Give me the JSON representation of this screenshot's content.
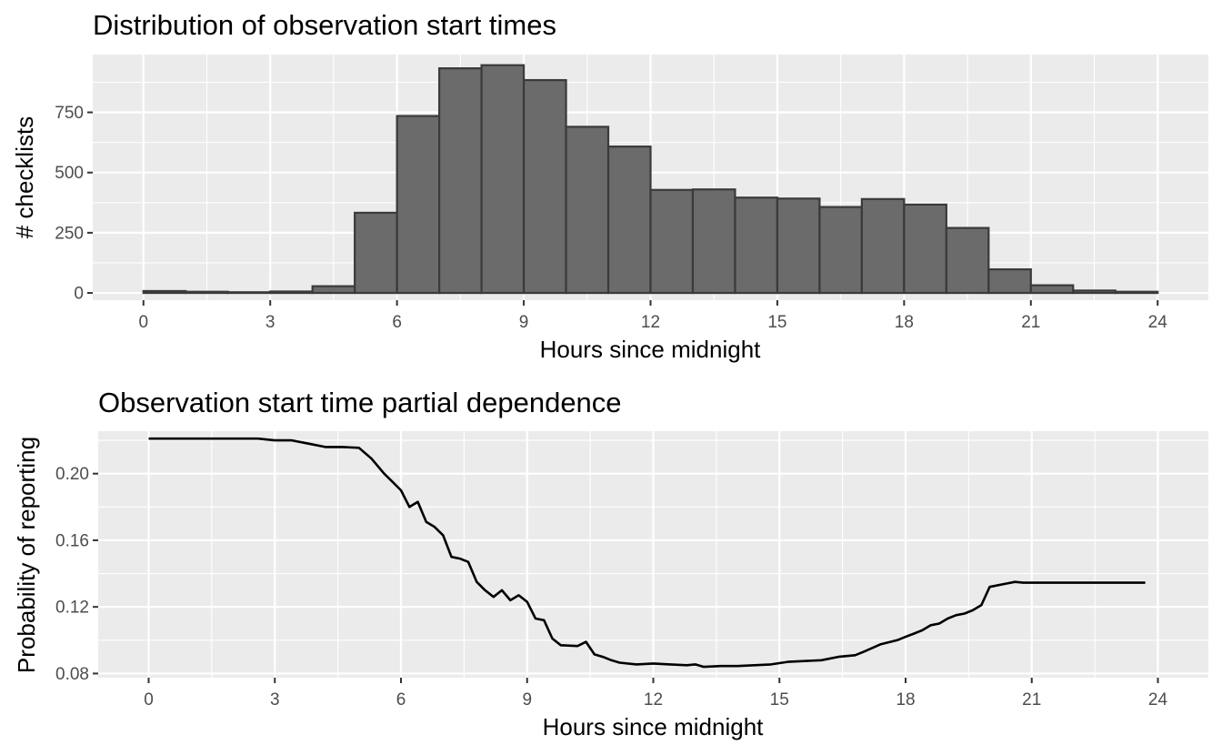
{
  "chart_data": [
    {
      "type": "bar",
      "title": "Distribution of observation start times",
      "xlabel": "Hours since midnight",
      "ylabel": "# checklists",
      "xlim": [
        -1.2,
        25.2
      ],
      "ylim": [
        -30,
        990
      ],
      "xticks": [
        0,
        3,
        6,
        9,
        12,
        15,
        18,
        21,
        24
      ],
      "xtick_labels": [
        "0",
        "3",
        "6",
        "9",
        "12",
        "15",
        "18",
        "21",
        "24"
      ],
      "yticks": [
        0,
        250,
        500,
        750
      ],
      "ytick_labels": [
        "0",
        "250",
        "500",
        "750"
      ],
      "grid": true,
      "bins": [
        {
          "start": 0,
          "end": 1,
          "count": 8
        },
        {
          "start": 1,
          "end": 2,
          "count": 5
        },
        {
          "start": 2,
          "end": 3,
          "count": 3
        },
        {
          "start": 3,
          "end": 4,
          "count": 6
        },
        {
          "start": 4,
          "end": 5,
          "count": 28
        },
        {
          "start": 5,
          "end": 6,
          "count": 333
        },
        {
          "start": 6,
          "end": 7,
          "count": 735
        },
        {
          "start": 7,
          "end": 8,
          "count": 933
        },
        {
          "start": 8,
          "end": 9,
          "count": 946
        },
        {
          "start": 9,
          "end": 10,
          "count": 884
        },
        {
          "start": 10,
          "end": 11,
          "count": 690
        },
        {
          "start": 11,
          "end": 12,
          "count": 608
        },
        {
          "start": 12,
          "end": 13,
          "count": 428
        },
        {
          "start": 13,
          "end": 14,
          "count": 430
        },
        {
          "start": 14,
          "end": 15,
          "count": 396
        },
        {
          "start": 15,
          "end": 16,
          "count": 392
        },
        {
          "start": 16,
          "end": 17,
          "count": 357
        },
        {
          "start": 17,
          "end": 18,
          "count": 390
        },
        {
          "start": 18,
          "end": 19,
          "count": 367
        },
        {
          "start": 19,
          "end": 20,
          "count": 270
        },
        {
          "start": 20,
          "end": 21,
          "count": 98
        },
        {
          "start": 21,
          "end": 22,
          "count": 32
        },
        {
          "start": 22,
          "end": 23,
          "count": 10
        },
        {
          "start": 23,
          "end": 24,
          "count": 5
        }
      ],
      "colors": {
        "bar_fill": "#6b6b6b",
        "bar_stroke": "#3a3a3a",
        "panel": "#ebebeb"
      }
    },
    {
      "type": "line",
      "title": "Observation start time partial dependence",
      "xlabel": "Hours since midnight",
      "ylabel": "Probability of reporting",
      "xlim": [
        -1.2,
        25.2
      ],
      "ylim": [
        0.0775,
        0.2255
      ],
      "xticks": [
        0,
        3,
        6,
        9,
        12,
        15,
        18,
        21,
        24
      ],
      "xtick_labels": [
        "0",
        "3",
        "6",
        "9",
        "12",
        "15",
        "18",
        "21",
        "24"
      ],
      "yticks": [
        0.08,
        0.12,
        0.16,
        0.2
      ],
      "ytick_labels": [
        "0.08",
        "0.12",
        "0.16",
        "0.20"
      ],
      "grid": true,
      "x": [
        0,
        1,
        2,
        2.6,
        3,
        3.4,
        3.8,
        4.2,
        4.6,
        5.0,
        5.3,
        5.6,
        5.8,
        6.0,
        6.2,
        6.4,
        6.6,
        6.8,
        7.0,
        7.2,
        7.4,
        7.6,
        7.8,
        8.0,
        8.2,
        8.4,
        8.6,
        8.8,
        9.0,
        9.2,
        9.4,
        9.6,
        9.8,
        10.2,
        10.4,
        10.6,
        10.8,
        11.0,
        11.2,
        11.6,
        12.0,
        12.4,
        12.8,
        13.0,
        13.2,
        13.6,
        14.0,
        14.4,
        14.8,
        15.2,
        15.6,
        16.0,
        16.4,
        16.8,
        17.0,
        17.4,
        17.8,
        18.0,
        18.2,
        18.4,
        18.6,
        18.8,
        19.0,
        19.2,
        19.4,
        19.6,
        19.8,
        20.0,
        20.4,
        20.6,
        20.8,
        21.0,
        22.0,
        23.0,
        23.7
      ],
      "y": [
        0.221,
        0.221,
        0.221,
        0.221,
        0.22,
        0.22,
        0.218,
        0.216,
        0.216,
        0.2155,
        0.209,
        0.2,
        0.195,
        0.19,
        0.18,
        0.183,
        0.171,
        0.168,
        0.163,
        0.15,
        0.149,
        0.147,
        0.135,
        0.13,
        0.126,
        0.13,
        0.124,
        0.127,
        0.123,
        0.113,
        0.112,
        0.101,
        0.097,
        0.0965,
        0.099,
        0.0915,
        0.09,
        0.088,
        0.0865,
        0.0855,
        0.086,
        0.0855,
        0.085,
        0.0855,
        0.084,
        0.0845,
        0.0845,
        0.085,
        0.0855,
        0.087,
        0.0875,
        0.088,
        0.09,
        0.091,
        0.093,
        0.0975,
        0.1,
        0.102,
        0.104,
        0.106,
        0.109,
        0.11,
        0.113,
        0.115,
        0.116,
        0.118,
        0.121,
        0.132,
        0.134,
        0.135,
        0.1345,
        0.1345,
        0.1345,
        0.1345,
        0.1345
      ],
      "colors": {
        "line": "#000000",
        "panel": "#ebebeb"
      }
    }
  ]
}
